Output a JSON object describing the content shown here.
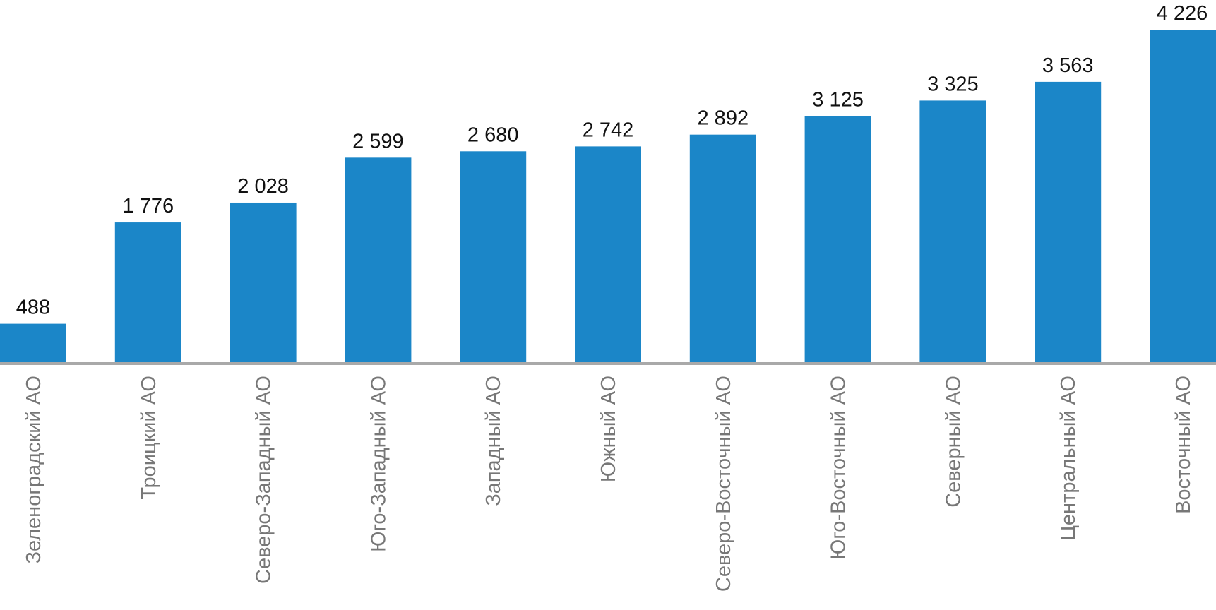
{
  "chart_data": {
    "type": "bar",
    "categories": [
      "Зеленоградский АО",
      "Троицкий АО",
      "Северо-Западный АО",
      "Юго-Западный АО",
      "Западный АО",
      "Южный АО",
      "Северо-Восточный АО",
      "Юго-Восточный АО",
      "Северный АО",
      "Центральный АО",
      "Восточный АО"
    ],
    "values": [
      488,
      1776,
      2028,
      2599,
      2680,
      2742,
      2892,
      3125,
      3325,
      3563,
      4226
    ],
    "value_labels": [
      "488",
      "1 776",
      "2 028",
      "2 599",
      "2 680",
      "2 742",
      "2 892",
      "3 125",
      "3 325",
      "3 563",
      "4 226"
    ],
    "color": "#1b86c8"
  }
}
